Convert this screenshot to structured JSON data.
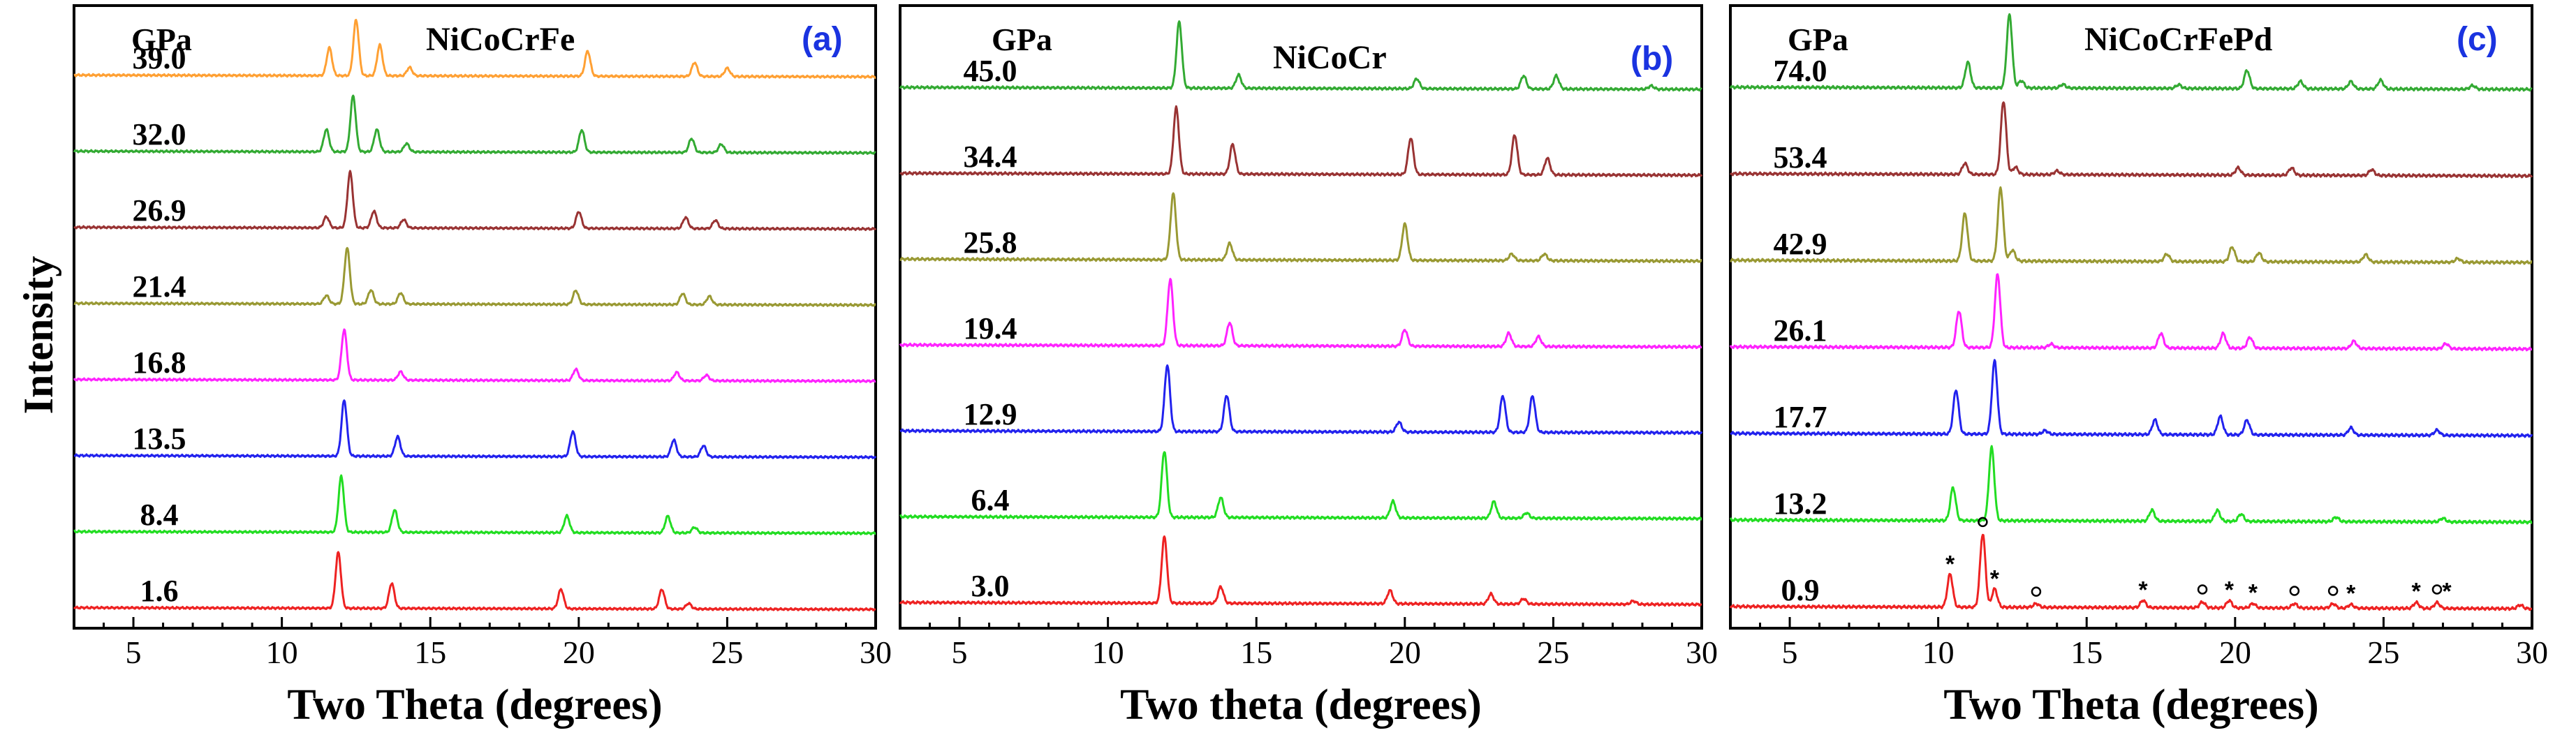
{
  "chart_data": [
    {
      "type": "line",
      "title": "NiCoCrFe",
      "panel_label": "(a)",
      "pressure_header": "GPa",
      "xlabel": "Two Theta (degrees)",
      "ylabel": "Intensity",
      "xlim": [
        3,
        30
      ],
      "xticks": [
        5,
        10,
        15,
        20,
        25,
        30
      ],
      "series": [
        {
          "name": "1.6",
          "color": "#ee2222",
          "peaks": [
            [
              11.9,
              1.0
            ],
            [
              13.7,
              0.45
            ],
            [
              19.4,
              0.35
            ],
            [
              22.8,
              0.35
            ],
            [
              23.7,
              0.1
            ]
          ]
        },
        {
          "name": "8.4",
          "color": "#22dd22",
          "peaks": [
            [
              12.0,
              1.0
            ],
            [
              13.8,
              0.4
            ],
            [
              19.6,
              0.3
            ],
            [
              23.0,
              0.3
            ],
            [
              23.9,
              0.1
            ]
          ]
        },
        {
          "name": "13.5",
          "color": "#2222ee",
          "peaks": [
            [
              12.1,
              1.0
            ],
            [
              13.9,
              0.35
            ],
            [
              19.8,
              0.45
            ],
            [
              23.2,
              0.3
            ],
            [
              24.2,
              0.2
            ]
          ]
        },
        {
          "name": "16.8",
          "color": "#ff22ff",
          "peaks": [
            [
              12.1,
              0.9
            ],
            [
              14.0,
              0.15
            ],
            [
              19.9,
              0.2
            ],
            [
              23.3,
              0.15
            ],
            [
              24.3,
              0.1
            ]
          ]
        },
        {
          "name": "21.4",
          "color": "#999933",
          "peaks": [
            [
              11.5,
              0.15
            ],
            [
              12.2,
              1.0
            ],
            [
              13.0,
              0.25
            ],
            [
              14.0,
              0.2
            ],
            [
              19.9,
              0.25
            ],
            [
              23.5,
              0.2
            ],
            [
              24.4,
              0.15
            ]
          ]
        },
        {
          "name": "26.9",
          "color": "#993333",
          "peaks": [
            [
              11.5,
              0.2
            ],
            [
              12.3,
              1.0
            ],
            [
              13.1,
              0.3
            ],
            [
              14.1,
              0.15
            ],
            [
              20.0,
              0.3
            ],
            [
              23.6,
              0.2
            ],
            [
              24.6,
              0.15
            ]
          ]
        },
        {
          "name": "32.0",
          "color": "#33aa33",
          "peaks": [
            [
              11.5,
              0.4
            ],
            [
              12.4,
              1.0
            ],
            [
              13.2,
              0.4
            ],
            [
              14.2,
              0.15
            ],
            [
              20.1,
              0.4
            ],
            [
              23.8,
              0.25
            ],
            [
              24.8,
              0.15
            ]
          ]
        },
        {
          "name": "39.0",
          "color": "#ffa033",
          "peaks": [
            [
              11.6,
              0.5
            ],
            [
              12.5,
              1.0
            ],
            [
              13.3,
              0.55
            ],
            [
              14.3,
              0.15
            ],
            [
              20.3,
              0.45
            ],
            [
              23.9,
              0.25
            ],
            [
              25.0,
              0.15
            ]
          ]
        }
      ]
    },
    {
      "type": "line",
      "title": "NiCoCr",
      "panel_label": "(b)",
      "pressure_header": "GPa",
      "xlabel": "Two theta (degrees)",
      "ylabel": "",
      "xlim": [
        3,
        30
      ],
      "xticks": [
        5,
        10,
        15,
        20,
        25,
        30
      ],
      "series": [
        {
          "name": "3.0",
          "color": "#ee2222",
          "peaks": [
            [
              11.9,
              1.0
            ],
            [
              13.8,
              0.25
            ],
            [
              19.5,
              0.2
            ],
            [
              22.9,
              0.15
            ],
            [
              24.0,
              0.08
            ],
            [
              27.7,
              0.05
            ]
          ]
        },
        {
          "name": "6.4",
          "color": "#22dd22",
          "peaks": [
            [
              11.9,
              1.0
            ],
            [
              13.8,
              0.3
            ],
            [
              19.6,
              0.25
            ],
            [
              23.0,
              0.25
            ],
            [
              24.1,
              0.08
            ]
          ]
        },
        {
          "name": "12.9",
          "color": "#2222ee",
          "peaks": [
            [
              12.0,
              1.0
            ],
            [
              14.0,
              0.55
            ],
            [
              19.8,
              0.15
            ],
            [
              23.3,
              0.55
            ],
            [
              24.3,
              0.55
            ]
          ]
        },
        {
          "name": "19.4",
          "color": "#ff22ff",
          "peaks": [
            [
              12.1,
              1.0
            ],
            [
              14.1,
              0.35
            ],
            [
              20.0,
              0.25
            ],
            [
              23.5,
              0.2
            ],
            [
              24.5,
              0.15
            ]
          ]
        },
        {
          "name": "25.8",
          "color": "#999933",
          "peaks": [
            [
              12.2,
              1.0
            ],
            [
              14.1,
              0.25
            ],
            [
              20.0,
              0.55
            ],
            [
              23.6,
              0.1
            ],
            [
              24.7,
              0.1
            ]
          ]
        },
        {
          "name": "34.4",
          "color": "#993333",
          "peaks": [
            [
              12.3,
              1.0
            ],
            [
              14.2,
              0.45
            ],
            [
              20.2,
              0.55
            ],
            [
              23.7,
              0.6
            ],
            [
              24.8,
              0.25
            ]
          ]
        },
        {
          "name": "45.0",
          "color": "#33aa33",
          "peaks": [
            [
              12.4,
              1.0
            ],
            [
              14.4,
              0.2
            ],
            [
              20.4,
              0.15
            ],
            [
              24.0,
              0.2
            ],
            [
              25.1,
              0.2
            ],
            [
              28.3,
              0.05
            ]
          ]
        }
      ]
    },
    {
      "type": "line",
      "title": "NiCoCrFePd",
      "panel_label": "(c)",
      "pressure_header": "GPa",
      "xlabel": "Two Theta (degrees)",
      "ylabel": "",
      "xlim": [
        3,
        30
      ],
      "xticks": [
        5,
        10,
        15,
        20,
        25,
        30
      ],
      "series": [
        {
          "name": "0.9",
          "color": "#ee2222",
          "peaks": [
            [
              10.4,
              0.45
            ],
            [
              11.5,
              1.0
            ],
            [
              11.9,
              0.25
            ],
            [
              13.3,
              0.05
            ],
            [
              16.9,
              0.1
            ],
            [
              18.9,
              0.08
            ],
            [
              19.8,
              0.1
            ],
            [
              20.6,
              0.06
            ],
            [
              22.0,
              0.06
            ],
            [
              23.3,
              0.06
            ],
            [
              23.9,
              0.05
            ],
            [
              26.1,
              0.08
            ],
            [
              26.8,
              0.08
            ],
            [
              29.6,
              0.05
            ]
          ]
        },
        {
          "name": "13.2",
          "color": "#22dd22",
          "peaks": [
            [
              10.5,
              0.45
            ],
            [
              11.8,
              1.0
            ],
            [
              17.2,
              0.15
            ],
            [
              19.4,
              0.15
            ],
            [
              20.2,
              0.1
            ],
            [
              23.4,
              0.06
            ],
            [
              27.0,
              0.05
            ]
          ]
        },
        {
          "name": "17.7",
          "color": "#2222ee",
          "peaks": [
            [
              10.6,
              0.6
            ],
            [
              11.9,
              1.0
            ],
            [
              13.6,
              0.05
            ],
            [
              17.3,
              0.2
            ],
            [
              19.5,
              0.25
            ],
            [
              20.4,
              0.2
            ],
            [
              23.9,
              0.1
            ],
            [
              26.8,
              0.07
            ]
          ]
        },
        {
          "name": "26.1",
          "color": "#ff22ff",
          "peaks": [
            [
              10.7,
              0.5
            ],
            [
              12.0,
              1.0
            ],
            [
              13.8,
              0.05
            ],
            [
              17.5,
              0.2
            ],
            [
              19.6,
              0.2
            ],
            [
              20.5,
              0.15
            ],
            [
              24.0,
              0.1
            ],
            [
              27.1,
              0.07
            ]
          ]
        },
        {
          "name": "42.9",
          "color": "#999933",
          "peaks": [
            [
              10.9,
              0.65
            ],
            [
              12.1,
              1.0
            ],
            [
              12.5,
              0.15
            ],
            [
              17.7,
              0.1
            ],
            [
              19.9,
              0.2
            ],
            [
              20.8,
              0.12
            ],
            [
              24.4,
              0.1
            ],
            [
              27.5,
              0.05
            ]
          ]
        },
        {
          "name": "53.4",
          "color": "#993333",
          "peaks": [
            [
              10.9,
              0.15
            ],
            [
              12.2,
              1.0
            ],
            [
              12.6,
              0.1
            ],
            [
              14.0,
              0.05
            ],
            [
              20.1,
              0.1
            ],
            [
              21.9,
              0.1
            ],
            [
              24.6,
              0.08
            ]
          ]
        },
        {
          "name": "74.0",
          "color": "#33aa33",
          "peaks": [
            [
              11.0,
              0.35
            ],
            [
              12.4,
              1.0
            ],
            [
              12.8,
              0.1
            ],
            [
              14.2,
              0.05
            ],
            [
              18.1,
              0.05
            ],
            [
              20.4,
              0.25
            ],
            [
              22.2,
              0.1
            ],
            [
              23.9,
              0.1
            ],
            [
              24.9,
              0.12
            ],
            [
              28.0,
              0.05
            ]
          ]
        }
      ],
      "annotations": [
        {
          "symbol": "*",
          "x": 10.4
        },
        {
          "symbol": "o",
          "x": 11.5
        },
        {
          "symbol": "*",
          "x": 11.9
        },
        {
          "symbol": "o",
          "x": 13.3
        },
        {
          "symbol": "*",
          "x": 16.9
        },
        {
          "symbol": "o",
          "x": 18.9
        },
        {
          "symbol": "*",
          "x": 19.8
        },
        {
          "symbol": "*",
          "x": 20.6
        },
        {
          "symbol": "o",
          "x": 22.0
        },
        {
          "symbol": "o",
          "x": 23.3
        },
        {
          "symbol": "*",
          "x": 23.9
        },
        {
          "symbol": "*",
          "x": 26.1
        },
        {
          "symbol": "o",
          "x": 26.8
        },
        {
          "symbol": "*",
          "x": 26.8
        }
      ]
    }
  ],
  "colors": {
    "panel_letter": "#1a33e0",
    "text": "#000000"
  }
}
